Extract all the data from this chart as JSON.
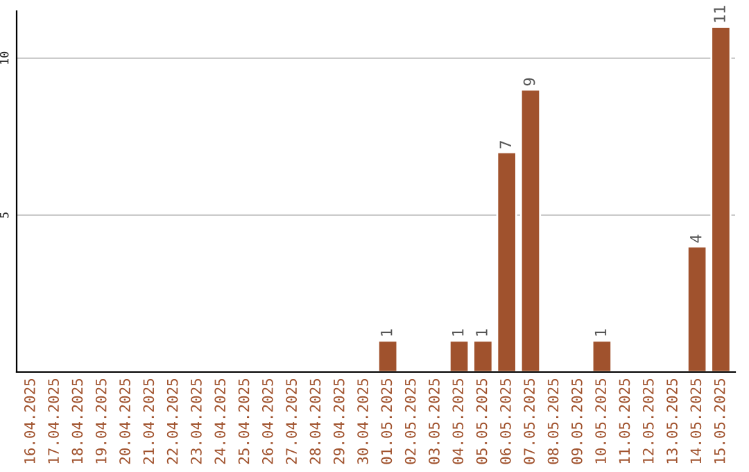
{
  "chart_data": {
    "type": "bar",
    "categories": [
      "16.04.2025",
      "17.04.2025",
      "18.04.2025",
      "19.04.2025",
      "20.04.2025",
      "21.04.2025",
      "22.04.2025",
      "23.04.2025",
      "24.04.2025",
      "25.04.2025",
      "26.04.2025",
      "27.04.2025",
      "28.04.2025",
      "29.04.2025",
      "30.04.2025",
      "01.05.2025",
      "02.05.2025",
      "03.05.2025",
      "04.05.2025",
      "05.05.2025",
      "06.05.2025",
      "07.05.2025",
      "08.05.2025",
      "09.05.2025",
      "10.05.2025",
      "11.05.2025",
      "12.05.2025",
      "13.05.2025",
      "14.05.2025",
      "15.05.2025"
    ],
    "values": [
      null,
      null,
      null,
      null,
      null,
      null,
      null,
      null,
      null,
      null,
      null,
      null,
      null,
      null,
      null,
      1,
      null,
      null,
      1,
      1,
      7,
      9,
      null,
      null,
      1,
      null,
      null,
      null,
      4,
      11
    ],
    "value_labels": [
      null,
      null,
      null,
      null,
      null,
      null,
      null,
      null,
      null,
      null,
      null,
      null,
      null,
      null,
      null,
      "1",
      null,
      null,
      "1",
      "1",
      "7",
      "9",
      null,
      null,
      "1",
      null,
      null,
      null,
      "4",
      "11"
    ],
    "color": "#a0522d",
    "ylim": [
      0,
      11.5
    ],
    "yticks": [
      5,
      10
    ],
    "grid": "y"
  }
}
